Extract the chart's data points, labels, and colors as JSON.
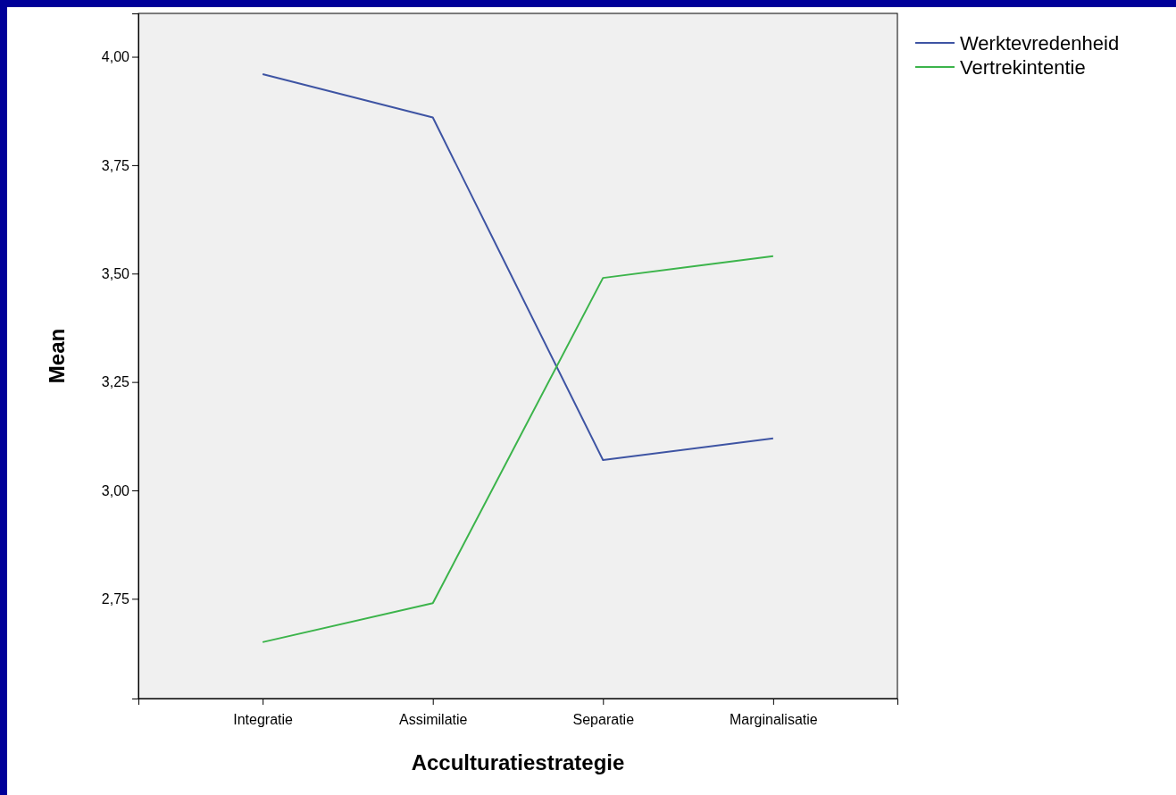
{
  "chart_data": {
    "type": "line",
    "xlabel": "Acculturatiestrategie",
    "ylabel": "Mean",
    "categories": [
      "Integratie",
      "Assimilatie",
      "Separatie",
      "Marginalisatie"
    ],
    "series": [
      {
        "name": "Werktevredenheid",
        "color": "#3e54a3",
        "values": [
          3.96,
          3.86,
          3.07,
          3.12
        ]
      },
      {
        "name": "Vertrekintentie",
        "color": "#3cb44b",
        "values": [
          2.65,
          2.74,
          3.49,
          3.54
        ]
      }
    ],
    "ylim": [
      2.52,
      4.1
    ],
    "yticks": [
      {
        "value": 2.75,
        "label": "2,75"
      },
      {
        "value": 3,
        "label": "3,00"
      },
      {
        "value": 3.25,
        "label": "3,25"
      },
      {
        "value": 3.5,
        "label": "3,50"
      },
      {
        "value": 3.75,
        "label": "3,75"
      },
      {
        "value": 4,
        "label": "4,00"
      }
    ],
    "grid": false,
    "legend": "top right",
    "marker": "none",
    "line_style": "solid"
  }
}
